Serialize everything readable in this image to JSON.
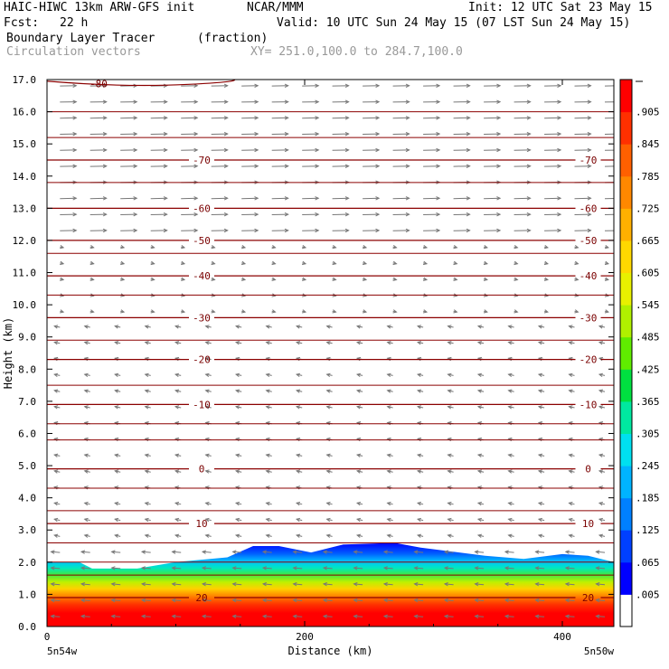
{
  "header": {
    "model": "HAIC-HIWC 13km ARW-GFS init",
    "center": "NCAR/MMM",
    "init": "Init: 12 UTC Sat 23 May 15",
    "fcst_label": "Fcst:",
    "fcst_value": "22 h",
    "valid": "Valid: 10 UTC Sun 24 May 15 (07 LST Sun 24 May 15)",
    "field": "Boundary Layer Tracer",
    "units": "(fraction)",
    "vectors": "Circulation vectors",
    "xy_range": "XY= 251.0,100.0 to 284.7,100.0"
  },
  "colors": {
    "contour": "#8b0000",
    "vector": "#777777",
    "colorbar": [
      "#ffffff",
      "#0000ff",
      "#0040ff",
      "#0080ff",
      "#00b4ff",
      "#00e0f0",
      "#00e8a0",
      "#00e040",
      "#60ec00",
      "#b0f000",
      "#e8f000",
      "#ffd800",
      "#ffb000",
      "#ff8800",
      "#ff6000",
      "#ff3000",
      "#ff0000"
    ]
  },
  "chart_data": {
    "type": "heatmap",
    "title": "Boundary Layer Tracer",
    "xlabel": "Distance (km)",
    "ylabel": "Height (km)",
    "xlim": [
      0,
      440
    ],
    "ylim": [
      0,
      17
    ],
    "x_ticks": [
      "0",
      "200",
      "400"
    ],
    "x_tick_values": [
      0,
      200,
      400
    ],
    "x_end_labels": [
      "5n54w",
      "5n50w"
    ],
    "y_ticks": [
      "0.0",
      "1.0",
      "2.0",
      "3.0",
      "4.0",
      "5.0",
      "6.0",
      "7.0",
      "8.0",
      "9.0",
      "10.0",
      "11.0",
      "12.0",
      "13.0",
      "14.0",
      "15.0",
      "16.0",
      "17.0"
    ],
    "colorbar_labels": [
      ".005",
      ".065",
      ".125",
      ".185",
      ".245",
      ".305",
      ".365",
      ".425",
      ".485",
      ".545",
      ".605",
      ".665",
      ".725",
      ".785",
      ".845",
      ".905"
    ],
    "tracer_top_km": [
      {
        "x": 0,
        "z": 2.0
      },
      {
        "x": 25,
        "z": 2.0
      },
      {
        "x": 35,
        "z": 1.8
      },
      {
        "x": 70,
        "z": 1.8
      },
      {
        "x": 100,
        "z": 2.0
      },
      {
        "x": 140,
        "z": 2.15
      },
      {
        "x": 160,
        "z": 2.5
      },
      {
        "x": 180,
        "z": 2.5
      },
      {
        "x": 205,
        "z": 2.3
      },
      {
        "x": 230,
        "z": 2.55
      },
      {
        "x": 270,
        "z": 2.6
      },
      {
        "x": 290,
        "z": 2.45
      },
      {
        "x": 340,
        "z": 2.2
      },
      {
        "x": 370,
        "z": 2.1
      },
      {
        "x": 400,
        "z": 2.25
      },
      {
        "x": 420,
        "z": 2.2
      },
      {
        "x": 440,
        "z": 2.0
      }
    ],
    "temperature_contours": [
      {
        "label": "-70",
        "z": 14.5
      },
      {
        "label": "-60",
        "z": 13.0
      },
      {
        "label": "-50",
        "z": 12.0
      },
      {
        "label": "-40",
        "z": 10.9
      },
      {
        "label": "-30",
        "z": 9.6
      },
      {
        "label": "-20",
        "z": 8.3
      },
      {
        "label": "-10",
        "z": 6.9
      },
      {
        "label": "0",
        "z": 4.9
      },
      {
        "label": "10",
        "z": 3.2
      },
      {
        "label": "20",
        "z": 0.9
      }
    ],
    "unlabeled_contours_km": [
      16.0,
      15.2,
      13.8,
      11.6,
      10.3,
      8.9,
      7.5,
      6.3,
      5.8,
      4.3,
      3.6,
      2.6,
      2.0,
      1.6
    ],
    "top_contour_label": "-80"
  }
}
